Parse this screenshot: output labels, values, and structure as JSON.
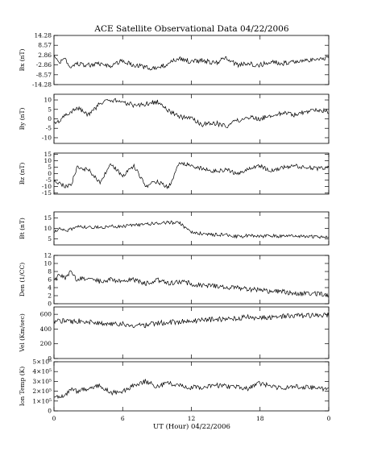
{
  "title": "ACE Satellite Observational Data   04/22/2006",
  "xlabel": "UT (Hour)   04/22/2006",
  "x_ticks": [
    "0",
    "6",
    "12",
    "18",
    "0"
  ],
  "line_color": "#000000",
  "chart_data": [
    {
      "type": "line",
      "ylabel": "Bx (nT)",
      "ylim": [
        -14.28,
        14.28
      ],
      "ytick_labels": [
        "14.28",
        "8.57",
        "2.86",
        "-2.86",
        "-8.57",
        "-14.28"
      ],
      "ytick_values": [
        14.28,
        8.57,
        2.86,
        -2.86,
        -8.57,
        -14.28
      ],
      "x": [
        0,
        0.5,
        1,
        1.5,
        2,
        3,
        4,
        5,
        6,
        7,
        8,
        9,
        10,
        11,
        12,
        13,
        14,
        15,
        16,
        17,
        18,
        19,
        20,
        21,
        22,
        23,
        24
      ],
      "y": [
        3,
        -2,
        1,
        -5,
        -2,
        -3,
        -2,
        -4,
        0,
        -3,
        -4,
        -5,
        -2,
        1,
        -1,
        0,
        -2,
        1,
        -3,
        -2,
        -3,
        -1,
        -2,
        -1,
        0,
        0.5,
        1
      ]
    },
    {
      "type": "line",
      "ylabel": "By (nT)",
      "ylim": [
        -13,
        13
      ],
      "ytick_labels": [
        "10",
        "5",
        "0",
        "-5",
        "-10"
      ],
      "ytick_values": [
        10,
        5,
        0,
        -5,
        -10
      ],
      "x": [
        0,
        0.5,
        1,
        1.5,
        2,
        3,
        4,
        5,
        6,
        7,
        8,
        9,
        10,
        11,
        12,
        13,
        14,
        15,
        16,
        17,
        18,
        19,
        20,
        21,
        22,
        23,
        24
      ],
      "y": [
        -2,
        -1,
        2,
        3,
        6,
        2,
        8,
        10,
        9,
        7,
        8,
        9,
        4,
        1,
        0,
        -3,
        -2,
        -4,
        -1,
        1,
        0,
        2,
        3,
        2,
        4,
        5,
        4
      ]
    },
    {
      "type": "line",
      "ylabel": "Bz (nT)",
      "ylim": [
        -16,
        16
      ],
      "ytick_labels": [
        "15",
        "10",
        "5",
        "0",
        "-5",
        "-10",
        "-15"
      ],
      "ytick_values": [
        15,
        10,
        5,
        0,
        -5,
        -10,
        -15
      ],
      "x": [
        0,
        0.5,
        1,
        1.5,
        2,
        3,
        4,
        5,
        6,
        7,
        8,
        9,
        10,
        11,
        12,
        13,
        14,
        15,
        16,
        17,
        18,
        19,
        20,
        21,
        22,
        23,
        24
      ],
      "y": [
        -5,
        -8,
        -10,
        -9,
        5,
        3,
        -7,
        8,
        -2,
        6,
        -10,
        -6,
        -11,
        9,
        6,
        4,
        2,
        3,
        0,
        4,
        6,
        2,
        5,
        6,
        5,
        4,
        5
      ]
    },
    {
      "type": "line",
      "ylabel": "Bt (nT)",
      "ylim": [
        2,
        18
      ],
      "ytick_labels": [
        "15",
        "10",
        "5"
      ],
      "ytick_values": [
        15,
        10,
        5
      ],
      "x": [
        0,
        0.5,
        1,
        1.5,
        2,
        3,
        4,
        5,
        6,
        7,
        8,
        9,
        10,
        11,
        12,
        13,
        14,
        15,
        16,
        17,
        18,
        19,
        20,
        21,
        22,
        23,
        24
      ],
      "y": [
        8,
        10,
        9,
        9.5,
        11,
        10.5,
        10.5,
        11,
        11,
        11.5,
        12,
        12.5,
        13,
        12.5,
        8,
        7.5,
        7,
        7,
        6,
        6.5,
        6,
        6.5,
        6,
        6.5,
        6,
        6,
        5.5
      ]
    },
    {
      "type": "line",
      "ylabel": "Den (1/CC)",
      "ylim": [
        0,
        12
      ],
      "ytick_labels": [
        "12",
        "10",
        "8",
        "6",
        "4",
        "2",
        "0"
      ],
      "ytick_values": [
        12,
        10,
        8,
        6,
        4,
        2,
        0
      ],
      "x": [
        0,
        0.5,
        1,
        1.5,
        2,
        3,
        4,
        5,
        6,
        7,
        8,
        9,
        10,
        11,
        12,
        13,
        14,
        15,
        16,
        17,
        18,
        19,
        20,
        21,
        22,
        23,
        24
      ],
      "y": [
        6,
        7,
        6.5,
        8,
        6,
        6.5,
        5.5,
        6,
        5.5,
        6,
        5,
        6,
        5,
        5.5,
        5,
        4.5,
        4.5,
        4,
        4,
        3.5,
        3.5,
        3,
        3,
        2.5,
        2.5,
        2.5,
        2
      ]
    },
    {
      "type": "line",
      "ylabel": "Vel (Km/sec)",
      "ylim": [
        0,
        700
      ],
      "ytick_labels": [
        "600",
        "400",
        "200",
        "0"
      ],
      "ytick_values": [
        600,
        400,
        200,
        0
      ],
      "x": [
        0,
        0.5,
        1,
        1.5,
        2,
        3,
        4,
        5,
        6,
        7,
        8,
        9,
        10,
        11,
        12,
        13,
        14,
        15,
        16,
        17,
        18,
        19,
        20,
        21,
        22,
        23,
        24
      ],
      "y": [
        500,
        510,
        520,
        500,
        510,
        500,
        480,
        470,
        470,
        450,
        450,
        480,
        490,
        500,
        510,
        520,
        530,
        540,
        550,
        560,
        550,
        560,
        570,
        580,
        580,
        590,
        590
      ]
    },
    {
      "type": "line",
      "ylabel": "Ion Temp (K)",
      "ylim": [
        0,
        500000
      ],
      "ytick_labels": [
        "5×10⁵",
        "4×10⁵",
        "3×10⁵",
        "2×10⁵",
        "1×10⁵",
        "0"
      ],
      "ytick_values": [
        500000,
        400000,
        300000,
        200000,
        100000,
        0
      ],
      "x": [
        0,
        0.5,
        1,
        1.5,
        2,
        3,
        4,
        5,
        6,
        7,
        8,
        9,
        10,
        11,
        12,
        13,
        14,
        15,
        16,
        17,
        18,
        19,
        20,
        21,
        22,
        23,
        24
      ],
      "y": [
        150000,
        130000,
        160000,
        220000,
        200000,
        230000,
        250000,
        180000,
        200000,
        260000,
        300000,
        250000,
        280000,
        260000,
        240000,
        230000,
        260000,
        250000,
        240000,
        230000,
        280000,
        250000,
        230000,
        250000,
        240000,
        230000,
        220000
      ]
    }
  ]
}
